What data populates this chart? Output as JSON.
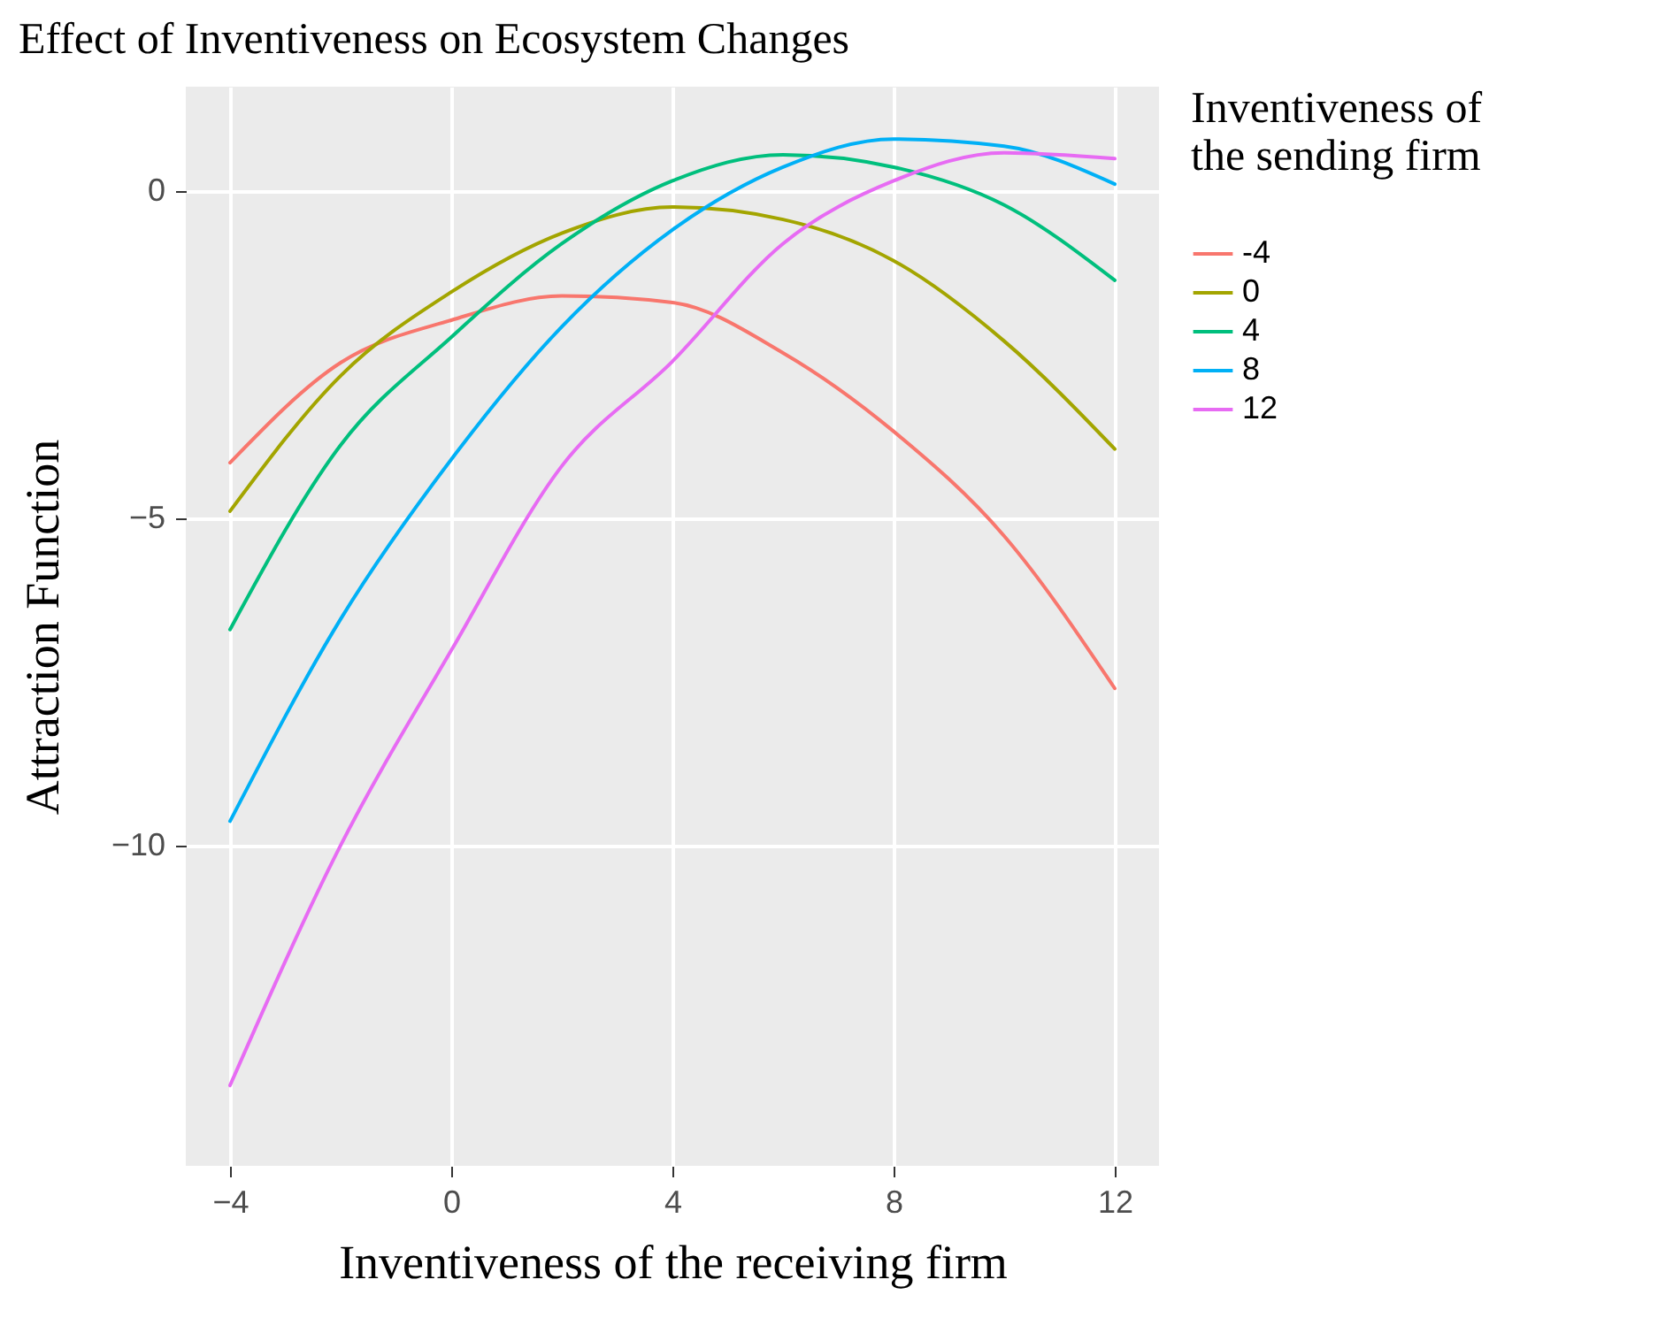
{
  "chart_data": {
    "type": "line",
    "title": "Effect of Inventiveness on Ecosystem Changes",
    "xlabel": "Inventiveness of the receiving firm",
    "ylabel": "Attraction Function",
    "legend_title": "Inventiveness of the sending firm",
    "x": [
      -4,
      -2,
      0,
      2,
      4,
      6,
      8,
      10,
      12
    ],
    "series": [
      {
        "name": "-4",
        "color": "#f8766d",
        "values": [
          -4.15,
          -2.62,
          -1.97,
          -1.6,
          -1.7,
          -2.47,
          -3.67,
          -5.27,
          -7.6
        ]
      },
      {
        "name": "0",
        "color": "#a3a500",
        "values": [
          -4.89,
          -2.82,
          -1.54,
          -0.64,
          -0.24,
          -0.43,
          -1.06,
          -2.29,
          -3.94
        ]
      },
      {
        "name": "4",
        "color": "#00bf7d",
        "values": [
          -6.7,
          -3.88,
          -2.23,
          -0.8,
          0.16,
          0.56,
          0.37,
          -0.21,
          -1.36
        ]
      },
      {
        "name": "8",
        "color": "#00b0f6",
        "values": [
          -9.63,
          -6.54,
          -4.1,
          -2.07,
          -0.59,
          0.37,
          0.8,
          0.69,
          0.11
        ]
      },
      {
        "name": "12",
        "color": "#e76bf3",
        "values": [
          -13.67,
          -10.0,
          -7.02,
          -4.2,
          -2.6,
          -0.8,
          0.16,
          0.59,
          0.5
        ]
      }
    ],
    "xlim": [
      -4.8,
      12.8
    ],
    "xticks": [
      -4,
      0,
      4,
      8,
      12
    ],
    "ylim": [
      -14.9,
      1.6
    ],
    "yticks": [
      -10,
      -5,
      0
    ],
    "grid": true,
    "legend": "right",
    "marker": "none",
    "line_style": "solid"
  }
}
